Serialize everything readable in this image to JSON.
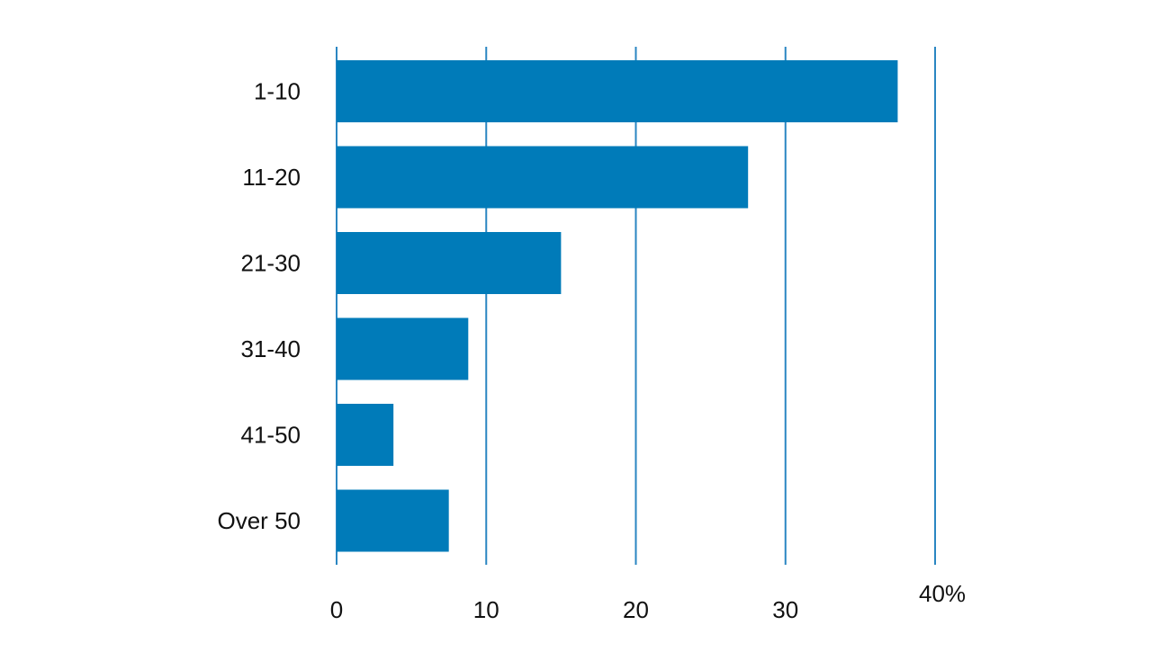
{
  "chart_data": {
    "type": "bar",
    "orientation": "horizontal",
    "categories": [
      "1-10",
      "11-20",
      "21-30",
      "31-40",
      "41-50",
      "Over 50"
    ],
    "values": [
      37.5,
      27.5,
      15.0,
      8.8,
      3.8,
      7.5
    ],
    "xlim": [
      0,
      40
    ],
    "x_ticks": [
      "0",
      "10",
      "20",
      "30",
      "40%"
    ],
    "x_tick_values": [
      0,
      10,
      20,
      30,
      40
    ],
    "grid": true,
    "title": "",
    "xlabel": "",
    "ylabel": ""
  },
  "colors": {
    "bar": "#007bb9",
    "grid": "#2a86c2"
  }
}
